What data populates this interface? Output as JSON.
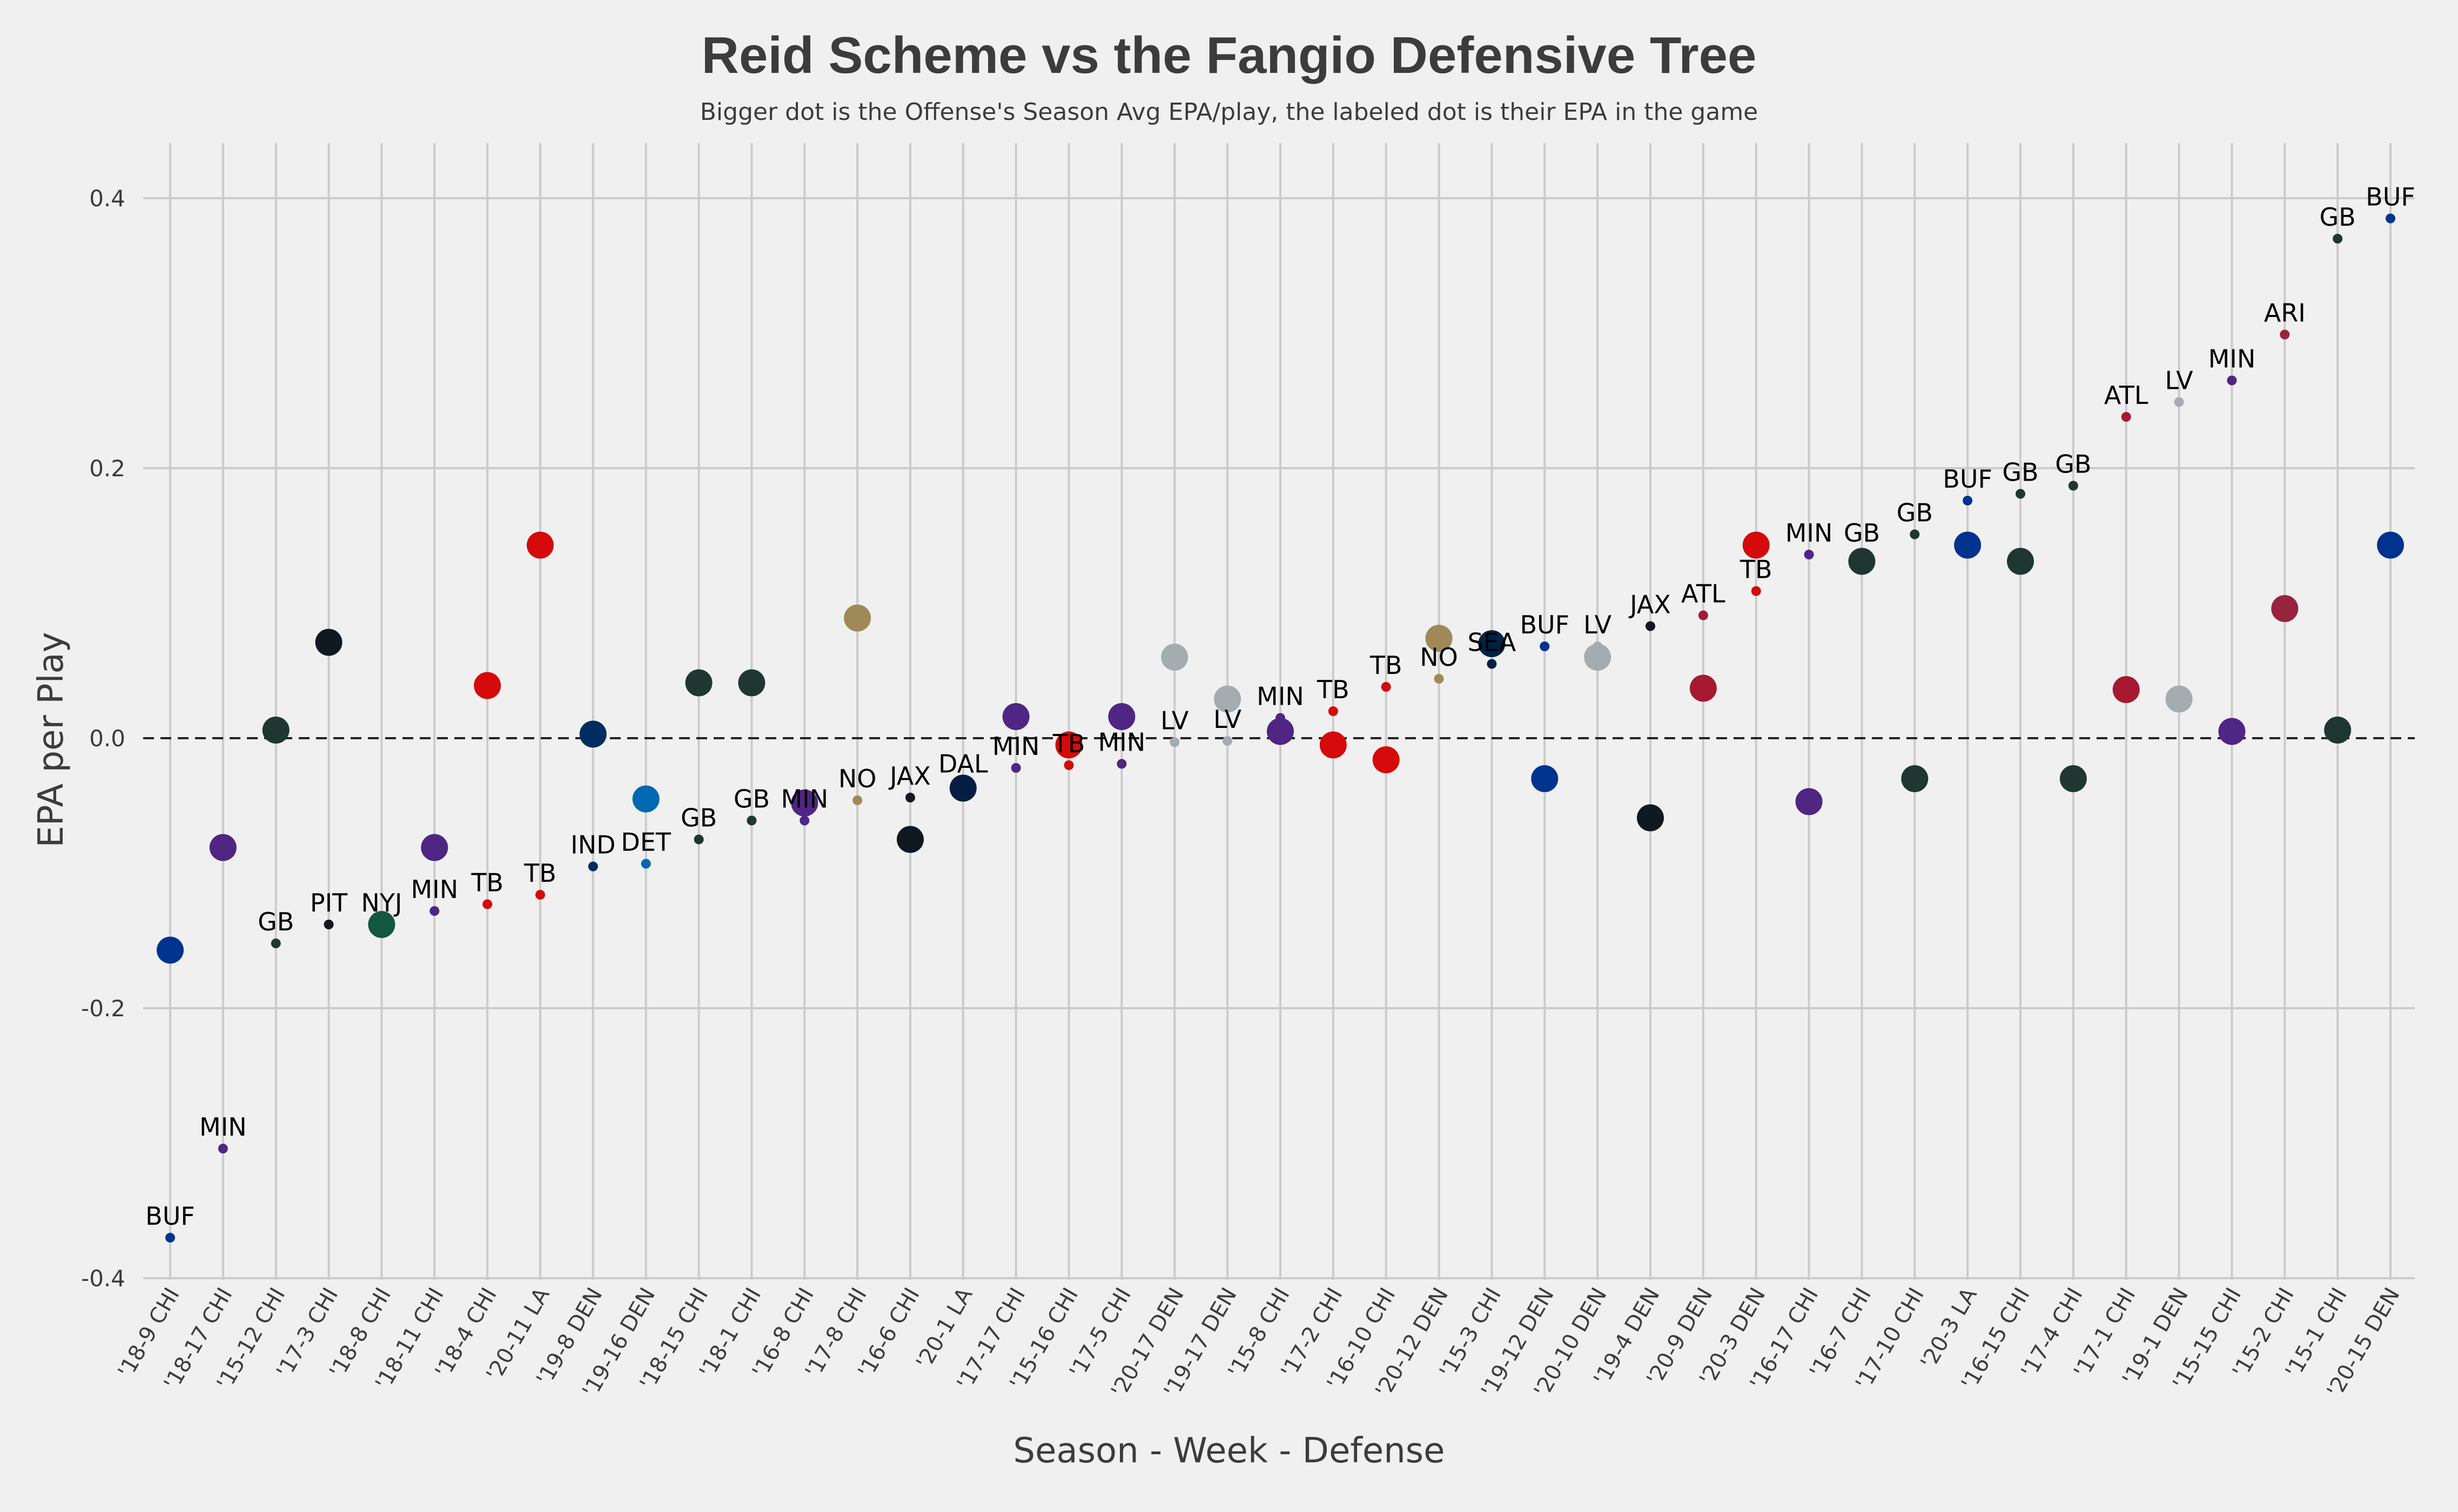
{
  "chart_data": {
    "type": "scatter",
    "title": "Reid Scheme vs the Fangio Defensive Tree",
    "subtitle": "Bigger dot is the Offense's Season Avg EPA/play, the labeled dot is their EPA in the game",
    "xlabel": "Season - Week - Defense",
    "ylabel": "EPA per Play",
    "ylim": [
      -0.4,
      0.44
    ],
    "yticks": [
      -0.4,
      -0.2,
      0.0,
      0.2,
      0.4
    ],
    "grid": true,
    "reference_line": 0.0,
    "categories": [
      "'18-9 CHI",
      "'18-17 CHI",
      "'15-12 CHI",
      "'17-3 CHI",
      "'18-8 CHI",
      "'18-11 CHI",
      "'18-4 CHI",
      "'20-11 LA",
      "'19-8 DEN",
      "'19-16 DEN",
      "'18-15 CHI",
      "'18-1 CHI",
      "'16-8 CHI",
      "'17-8 CHI",
      "'16-6 CHI",
      "'20-1 LA",
      "'17-17 CHI",
      "'15-16 CHI",
      "'17-5 CHI",
      "'20-17 DEN",
      "'19-17 DEN",
      "'15-8 CHI",
      "'17-2 CHI",
      "'16-10 CHI",
      "'20-12 DEN",
      "'15-3 CHI",
      "'19-12 DEN",
      "'20-10 DEN",
      "'19-4 DEN",
      "'20-9 DEN",
      "'20-3 DEN",
      "'16-17 CHI",
      "'16-7 CHI",
      "'17-10 CHI",
      "'20-3 LA",
      "'16-15 CHI",
      "'17-4 CHI",
      "'17-1 CHI",
      "'19-1 DEN",
      "'15-15 CHI",
      "'15-2 CHI",
      "'15-1 CHI",
      "'20-15 DEN"
    ],
    "teams": [
      "BUF",
      "MIN",
      "GB",
      "PIT",
      "NYJ",
      "MIN",
      "TB",
      "TB",
      "IND",
      "DET",
      "GB",
      "GB",
      "MIN",
      "NO",
      "JAX",
      "DAL",
      "MIN",
      "TB",
      "MIN",
      "LV",
      "LV",
      "MIN",
      "TB",
      "TB",
      "NO",
      "SEA",
      "BUF",
      "LV",
      "JAX",
      "ATL",
      "TB",
      "MIN",
      "GB",
      "GB",
      "BUF",
      "GB",
      "GB",
      "ATL",
      "LV",
      "MIN",
      "ARI",
      "GB",
      "BUF"
    ],
    "series": [
      {
        "name": "Game EPA/play",
        "values": [
          -0.37,
          -0.304,
          -0.152,
          -0.138,
          -0.138,
          -0.128,
          -0.123,
          -0.116,
          -0.095,
          -0.093,
          -0.075,
          -0.061,
          -0.061,
          -0.046,
          -0.044,
          -0.035,
          -0.022,
          -0.02,
          -0.019,
          -0.003,
          -0.002,
          0.015,
          0.02,
          0.038,
          0.044,
          0.055,
          0.068,
          0.068,
          0.083,
          0.091,
          0.109,
          0.136,
          0.136,
          0.151,
          0.176,
          0.181,
          0.187,
          0.238,
          0.249,
          0.265,
          0.299,
          0.37,
          0.385
        ]
      },
      {
        "name": "Season Avg EPA/play",
        "values": [
          -0.157,
          -0.081,
          0.006,
          0.071,
          -0.138,
          -0.081,
          0.039,
          0.143,
          0.003,
          -0.045,
          0.041,
          0.041,
          -0.048,
          0.089,
          -0.075,
          -0.037,
          0.016,
          -0.005,
          0.016,
          0.06,
          0.029,
          0.005,
          -0.005,
          -0.016,
          0.074,
          0.07,
          -0.03,
          0.06,
          -0.059,
          0.037,
          0.143,
          -0.047,
          0.131,
          -0.03,
          0.143,
          0.131,
          -0.03,
          0.036,
          0.029,
          0.005,
          0.096,
          0.006,
          0.143
        ]
      }
    ],
    "team_colors": {
      "BUF": "#00338d",
      "MIN": "#4f2683",
      "GB": "#203731",
      "PIT": "#101820",
      "NYJ": "#125740",
      "TB": "#d50a0a",
      "IND": "#002c5f",
      "DET": "#0069b1",
      "NO": "#9f8958",
      "JAX": "#101820",
      "DAL": "#041e42",
      "LV": "#a5acaf",
      "SEA": "#002244",
      "ATL": "#a71930",
      "ARI": "#97233f"
    }
  }
}
